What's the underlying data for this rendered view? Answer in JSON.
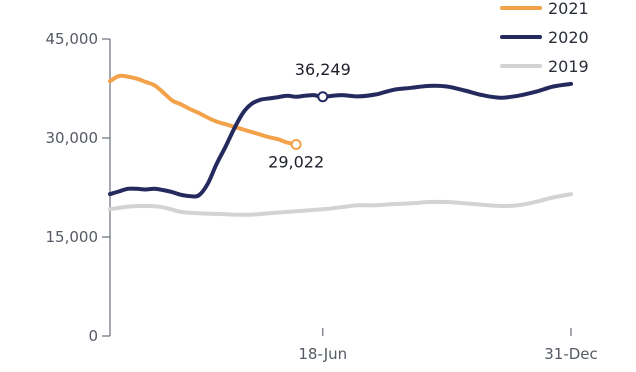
{
  "chart_data": {
    "type": "line",
    "x_unit": "date",
    "xlim": [
      "01-Jan",
      "31-Dec"
    ],
    "ylim": [
      0,
      45000
    ],
    "y_ticks": [
      {
        "value": 0,
        "label": "0"
      },
      {
        "value": 15000,
        "label": "15,000"
      },
      {
        "value": 30000,
        "label": "30,000"
      },
      {
        "value": 45000,
        "label": "45,000"
      }
    ],
    "x_ticks": [
      {
        "value": "18-Jun",
        "label": "18-Jun"
      },
      {
        "value": "31-Dec",
        "label": "31-Dec"
      }
    ],
    "legend": {
      "position": "top-right"
    },
    "series": [
      {
        "name": "2021",
        "color": "#f4a24a",
        "points": [
          [
            "01-Jan",
            38600
          ],
          [
            "08-Jan",
            39400
          ],
          [
            "15-Jan",
            39300
          ],
          [
            "22-Jan",
            39000
          ],
          [
            "29-Jan",
            38500
          ],
          [
            "05-Feb",
            38000
          ],
          [
            "12-Feb",
            36900
          ],
          [
            "19-Feb",
            35700
          ],
          [
            "26-Feb",
            35100
          ],
          [
            "05-Mar",
            34400
          ],
          [
            "12-Mar",
            33800
          ],
          [
            "19-Mar",
            33100
          ],
          [
            "26-Mar",
            32500
          ],
          [
            "02-Apr",
            32100
          ],
          [
            "09-Apr",
            31700
          ],
          [
            "16-Apr",
            31300
          ],
          [
            "23-Apr",
            30900
          ],
          [
            "30-Apr",
            30500
          ],
          [
            "07-May",
            30100
          ],
          [
            "14-May",
            29800
          ],
          [
            "21-May",
            29300
          ],
          [
            "28-May",
            29022
          ]
        ]
      },
      {
        "name": "2020",
        "color": "#252a5e",
        "points": [
          [
            "01-Jan",
            21500
          ],
          [
            "08-Jan",
            21900
          ],
          [
            "15-Jan",
            22300
          ],
          [
            "22-Jan",
            22300
          ],
          [
            "29-Jan",
            22200
          ],
          [
            "05-Feb",
            22300
          ],
          [
            "12-Feb",
            22100
          ],
          [
            "19-Feb",
            21800
          ],
          [
            "26-Feb",
            21400
          ],
          [
            "05-Mar",
            21200
          ],
          [
            "12-Mar",
            21300
          ],
          [
            "19-Mar",
            23000
          ],
          [
            "26-Mar",
            26000
          ],
          [
            "02-Apr",
            28600
          ],
          [
            "09-Apr",
            31400
          ],
          [
            "16-Apr",
            33800
          ],
          [
            "23-Apr",
            35200
          ],
          [
            "30-Apr",
            35800
          ],
          [
            "07-May",
            36000
          ],
          [
            "14-May",
            36200
          ],
          [
            "21-May",
            36400
          ],
          [
            "28-May",
            36249
          ],
          [
            "04-Jun",
            36400
          ],
          [
            "11-Jun",
            36500
          ],
          [
            "18-Jun",
            36249
          ],
          [
            "02-Jul",
            36500
          ],
          [
            "16-Jul",
            36300
          ],
          [
            "30-Jul",
            36600
          ],
          [
            "13-Aug",
            37300
          ],
          [
            "27-Aug",
            37600
          ],
          [
            "10-Sep",
            37900
          ],
          [
            "24-Sep",
            37800
          ],
          [
            "08-Oct",
            37200
          ],
          [
            "22-Oct",
            36500
          ],
          [
            "05-Nov",
            36100
          ],
          [
            "19-Nov",
            36400
          ],
          [
            "03-Dec",
            37000
          ],
          [
            "17-Dec",
            37800
          ],
          [
            "31-Dec",
            38200
          ]
        ]
      },
      {
        "name": "2019",
        "color": "#d3d3d3",
        "points": [
          [
            "01-Jan",
            19200
          ],
          [
            "15-Jan",
            19600
          ],
          [
            "29-Jan",
            19700
          ],
          [
            "12-Feb",
            19500
          ],
          [
            "26-Feb",
            18800
          ],
          [
            "12-Mar",
            18600
          ],
          [
            "26-Mar",
            18500
          ],
          [
            "09-Apr",
            18400
          ],
          [
            "23-Apr",
            18400
          ],
          [
            "07-May",
            18600
          ],
          [
            "21-May",
            18800
          ],
          [
            "04-Jun",
            19000
          ],
          [
            "18-Jun",
            19200
          ],
          [
            "02-Jul",
            19500
          ],
          [
            "16-Jul",
            19800
          ],
          [
            "30-Jul",
            19800
          ],
          [
            "13-Aug",
            20000
          ],
          [
            "27-Aug",
            20100
          ],
          [
            "10-Sep",
            20300
          ],
          [
            "24-Sep",
            20300
          ],
          [
            "08-Oct",
            20100
          ],
          [
            "22-Oct",
            19900
          ],
          [
            "05-Nov",
            19700
          ],
          [
            "19-Nov",
            19800
          ],
          [
            "03-Dec",
            20300
          ],
          [
            "17-Dec",
            21000
          ],
          [
            "31-Dec",
            21500
          ]
        ]
      }
    ],
    "annotations": [
      {
        "series": "2020",
        "x": "18-Jun",
        "y": 36249,
        "label": "36,249"
      },
      {
        "series": "2021",
        "x": "28-May",
        "y": 29022,
        "label": "29,022"
      }
    ]
  }
}
